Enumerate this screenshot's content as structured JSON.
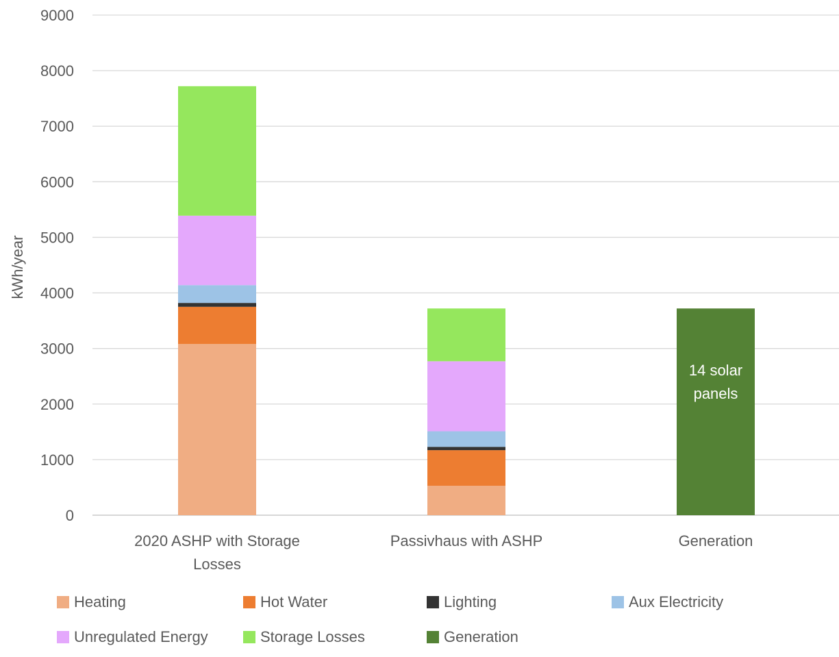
{
  "chart_data": {
    "type": "bar",
    "stacked": true,
    "title": "",
    "xlabel": "",
    "ylabel": "kWh/year",
    "ylim": [
      0,
      9000
    ],
    "yticks": [
      0,
      1000,
      2000,
      3000,
      4000,
      5000,
      6000,
      7000,
      8000,
      9000
    ],
    "grid": true,
    "legend_position": "bottom",
    "categories": [
      "2020 ASHP with Storage Losses",
      "Passivhaus with ASHP",
      "Generation"
    ],
    "category_lines": [
      [
        "2020 ASHP with Storage",
        "Losses"
      ],
      [
        "Passivhaus with ASHP"
      ],
      [
        "Generation"
      ]
    ],
    "series": [
      {
        "name": "Heating",
        "color": "#F0AD83",
        "values": [
          3080,
          530,
          0
        ]
      },
      {
        "name": "Hot Water",
        "color": "#ED7D31",
        "values": [
          670,
          640,
          0
        ]
      },
      {
        "name": "Lighting",
        "color": "#333333",
        "values": [
          70,
          60,
          0
        ]
      },
      {
        "name": "Aux Electricity",
        "color": "#9DC3E6",
        "values": [
          320,
          280,
          0
        ]
      },
      {
        "name": "Unregulated Energy",
        "color": "#E4A8FC",
        "values": [
          1250,
          1260,
          0
        ]
      },
      {
        "name": "Storage Losses",
        "color": "#95E75D",
        "values": [
          2330,
          950,
          0
        ]
      },
      {
        "name": "Generation",
        "color": "#548235",
        "values": [
          0,
          0,
          3720
        ]
      }
    ],
    "annotations": [
      {
        "category": "Generation",
        "lines": [
          "14 solar",
          "panels"
        ],
        "at_value": 2000
      }
    ]
  }
}
